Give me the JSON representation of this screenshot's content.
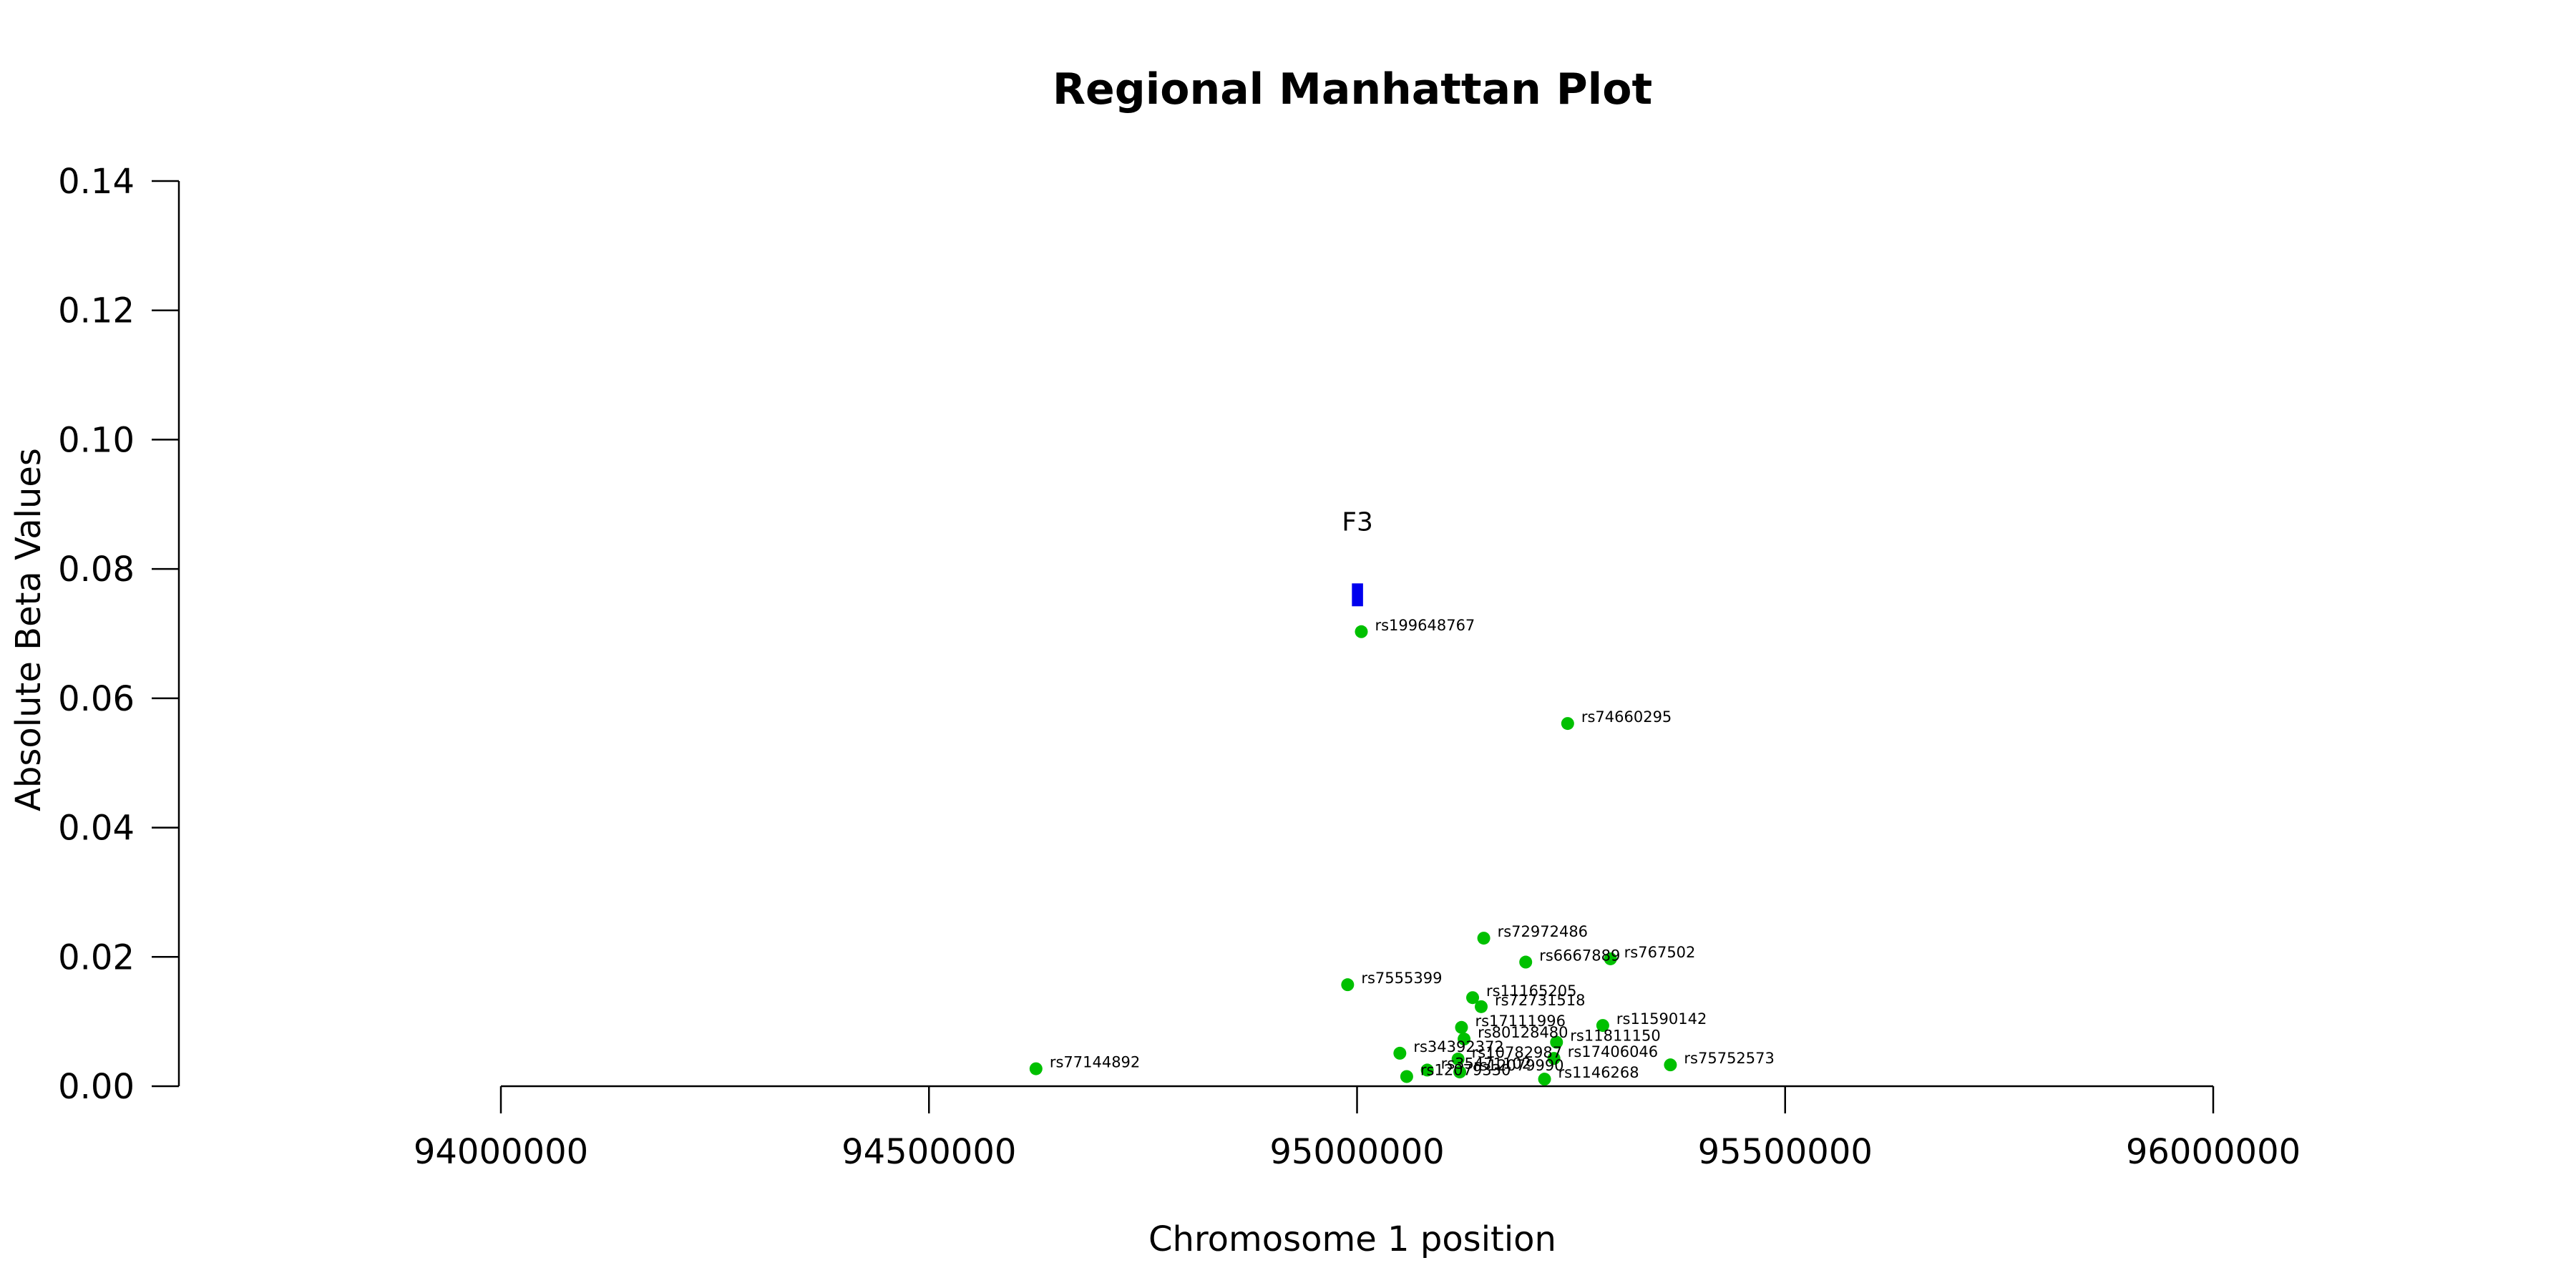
{
  "chart_data": {
    "type": "scatter",
    "title": "Regional Manhattan Plot",
    "xlabel": "Chromosome 1 position",
    "ylabel": "Absolute Beta Values",
    "xlim": [
      94000000,
      96000000
    ],
    "ylim": [
      0,
      0.14
    ],
    "x_ticks": [
      94000000,
      94500000,
      95000000,
      95500000,
      96000000
    ],
    "x_tick_labels": [
      "94000000",
      "94500000",
      "95000000",
      "95500000",
      "96000000"
    ],
    "y_ticks": [
      0,
      0.02,
      0.04,
      0.06,
      0.08,
      0.1,
      0.12,
      0.14
    ],
    "y_tick_labels": [
      "0.00",
      "0.02",
      "0.04",
      "0.06",
      "0.08",
      "0.10",
      "0.12",
      "0.14"
    ],
    "grid": false,
    "point_color": "#00c000",
    "gene_color": "#0000ee",
    "gene": {
      "name": "F3",
      "x_start": 94994000,
      "x_end": 95007000,
      "y": 0.076
    },
    "points": [
      {
        "label": "rs199648767",
        "x": 95005000,
        "y": 0.0703
      },
      {
        "label": "rs74660295",
        "x": 95246000,
        "y": 0.0561
      },
      {
        "label": "rs72972486",
        "x": 95148000,
        "y": 0.0229
      },
      {
        "label": "rs6667889",
        "x": 95197000,
        "y": 0.0192
      },
      {
        "label": "rs767502",
        "x": 95296000,
        "y": 0.0197
      },
      {
        "label": "rs7555399",
        "x": 94989000,
        "y": 0.0157
      },
      {
        "label": "rs11165205",
        "x": 95135000,
        "y": 0.0137
      },
      {
        "label": "rs72731518",
        "x": 95145000,
        "y": 0.0123
      },
      {
        "label": "rs17111996",
        "x": 95122000,
        "y": 0.0091
      },
      {
        "label": "rs11590142",
        "x": 95287000,
        "y": 0.0094
      },
      {
        "label": "rs80128480",
        "x": 95125000,
        "y": 0.0073
      },
      {
        "label": "rs11811150",
        "x": 95233000,
        "y": 0.0068
      },
      {
        "label": "rs34392372",
        "x": 95050000,
        "y": 0.0051
      },
      {
        "label": "rs10782987",
        "x": 95118000,
        "y": 0.0042
      },
      {
        "label": "rs17406046",
        "x": 95230000,
        "y": 0.0043
      },
      {
        "label": "rs75752573",
        "x": 95366000,
        "y": 0.0033
      },
      {
        "label": "rs77144892",
        "x": 94625000,
        "y": 0.0027
      },
      {
        "label": "rs35471102",
        "x": 95082000,
        "y": 0.0025
      },
      {
        "label": "rs12079990",
        "x": 95120000,
        "y": 0.0022
      },
      {
        "label": "rs12079330",
        "x": 95058000,
        "y": 0.0015
      },
      {
        "label": "rs1146268",
        "x": 95219000,
        "y": 0.0011
      }
    ]
  }
}
